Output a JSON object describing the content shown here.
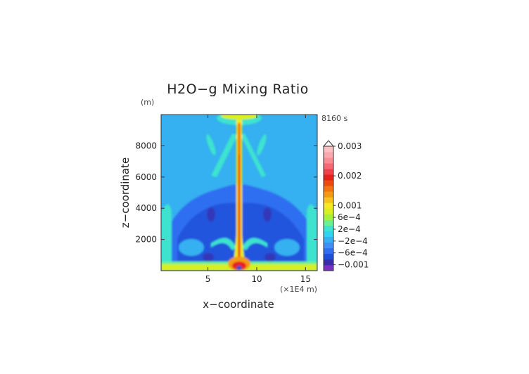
{
  "chart_data": {
    "type": "heatmap",
    "title": "H2O−g Mixing Ratio",
    "xlabel": "x−coordinate",
    "ylabel": "z−coordinate",
    "x_unit": "(×1E4 m)",
    "y_unit": "(m)",
    "time_label": "8160 s",
    "xlim": [
      0.2,
      16.2
    ],
    "ylim": [
      0,
      10000
    ],
    "x_ticks": [
      5,
      10,
      15
    ],
    "y_ticks": [
      2000,
      4000,
      6000,
      8000
    ],
    "colorbar": {
      "tick_labels": [
        "0.003",
        "0.002",
        "0.001",
        "6e−4",
        "2e−4",
        "−2e−4",
        "−6e−4",
        "−0.001"
      ],
      "tick_values": [
        0.003,
        0.002,
        0.001,
        0.0006,
        0.0002,
        -0.0002,
        -0.0006,
        -0.001
      ],
      "colors": [
        "#7b2fbf",
        "#3a2ca8",
        "#1f4fd8",
        "#2f6ef0",
        "#3f8ef5",
        "#35b0f0",
        "#2fd4ee",
        "#3de3cf",
        "#6ef08e",
        "#a9f03c",
        "#d8f020",
        "#f5e81e",
        "#f7c21c",
        "#f59a18",
        "#f27312",
        "#ee4a10",
        "#e8201c",
        "#f0404a",
        "#f56a72",
        "#f78e95",
        "#f9a8ae",
        "#fbc0c4"
      ]
    }
  }
}
